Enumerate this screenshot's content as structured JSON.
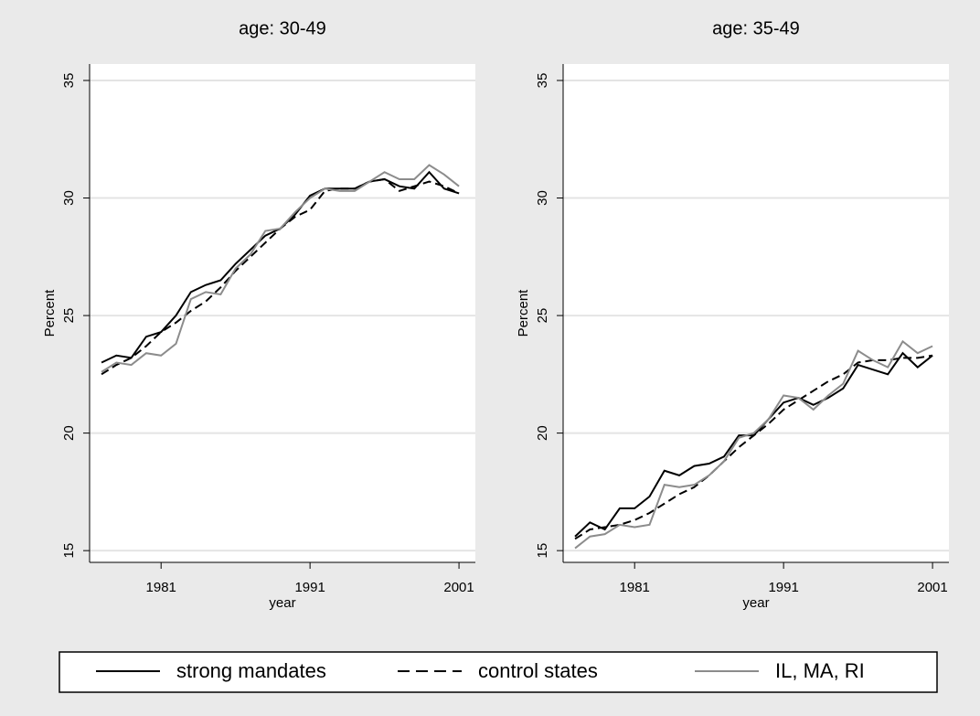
{
  "chart_data": [
    {
      "type": "line",
      "title": "age: 30-49",
      "x_label": "year",
      "y_label": "Percent",
      "x": [
        1977,
        1978,
        1979,
        1980,
        1981,
        1982,
        1983,
        1984,
        1985,
        1986,
        1987,
        1988,
        1989,
        1990,
        1991,
        1992,
        1993,
        1994,
        1995,
        1996,
        1997,
        1998,
        1999,
        2000,
        2001
      ],
      "series": [
        {
          "name": "strong mandates",
          "color": "#000000",
          "style": "solid",
          "values": [
            23.0,
            23.3,
            23.2,
            24.1,
            24.3,
            25.0,
            26.0,
            26.3,
            26.5,
            27.2,
            27.8,
            28.4,
            28.7,
            29.3,
            30.1,
            30.4,
            30.4,
            30.4,
            30.7,
            30.8,
            30.5,
            30.4,
            31.1,
            30.4,
            30.2
          ]
        },
        {
          "name": "control states",
          "color": "#000000",
          "style": "dashed",
          "values": [
            22.5,
            22.9,
            23.2,
            23.7,
            24.3,
            24.7,
            25.2,
            25.6,
            26.2,
            26.9,
            27.5,
            28.1,
            28.7,
            29.2,
            29.5,
            30.3,
            30.4,
            30.4,
            30.7,
            30.8,
            30.3,
            30.5,
            30.7,
            30.5,
            30.2
          ]
        },
        {
          "name": "IL, MA, RI",
          "color": "#8c8c8c",
          "style": "solid",
          "values": [
            22.6,
            23.0,
            22.9,
            23.4,
            23.3,
            23.8,
            25.7,
            26.0,
            25.9,
            27.0,
            27.6,
            28.6,
            28.7,
            29.4,
            30.0,
            30.4,
            30.3,
            30.3,
            30.7,
            31.1,
            30.8,
            30.8,
            31.4,
            31.0,
            30.5
          ]
        }
      ],
      "xlim": [
        1976.2,
        2002.1
      ],
      "ylim": [
        14.5,
        35.7
      ],
      "xticks": [
        1981,
        1991,
        2001
      ],
      "yticks": [
        15,
        20,
        25,
        30,
        35
      ],
      "grid": true
    },
    {
      "type": "line",
      "title": "age: 35-49",
      "x_label": "year",
      "y_label": "Percent",
      "x": [
        1977,
        1978,
        1979,
        1980,
        1981,
        1982,
        1983,
        1984,
        1985,
        1986,
        1987,
        1988,
        1989,
        1990,
        1991,
        1992,
        1993,
        1994,
        1995,
        1996,
        1997,
        1998,
        1999,
        2000,
        2001
      ],
      "series": [
        {
          "color": "#000000",
          "style": "solid",
          "values": [
            15.6,
            16.2,
            15.9,
            16.8,
            16.8,
            17.3,
            18.4,
            18.2,
            18.6,
            18.7,
            19.0,
            19.9,
            19.9,
            20.6,
            21.3,
            21.5,
            21.2,
            21.5,
            21.9,
            22.9,
            22.7,
            22.5,
            23.4,
            22.8,
            23.3
          ]
        },
        {
          "color": "#000000",
          "style": "dashed",
          "values": [
            15.5,
            15.9,
            16.0,
            16.1,
            16.3,
            16.6,
            17.0,
            17.4,
            17.7,
            18.2,
            18.8,
            19.4,
            19.9,
            20.4,
            21.0,
            21.4,
            21.8,
            22.2,
            22.5,
            23.0,
            23.1,
            23.1,
            23.2,
            23.2,
            23.3
          ]
        },
        {
          "color": "#8c8c8c",
          "style": "solid",
          "values": [
            15.1,
            15.6,
            15.7,
            16.1,
            16.0,
            16.1,
            17.8,
            17.7,
            17.8,
            18.2,
            18.8,
            19.8,
            20.0,
            20.6,
            21.6,
            21.5,
            21.0,
            21.6,
            22.1,
            23.5,
            23.1,
            22.8,
            23.9,
            23.4,
            23.7
          ]
        }
      ],
      "xlim": [
        1976.2,
        2002.1
      ],
      "ylim": [
        14.5,
        35.7
      ],
      "xticks": [
        1981,
        1991,
        2001
      ],
      "yticks": [
        15,
        20,
        25,
        30,
        35
      ],
      "grid": true
    }
  ]
}
